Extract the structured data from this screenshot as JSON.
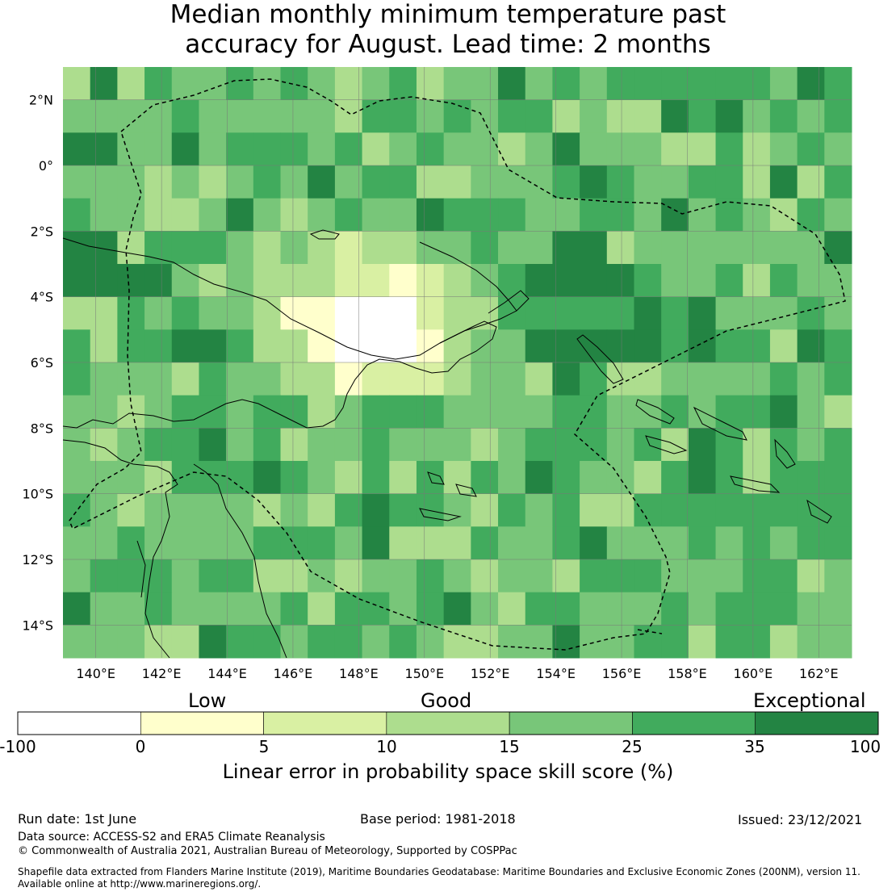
{
  "title": {
    "line1": "Median monthly minimum temperature past",
    "line2": "accuracy for August. Lead time: 2 months"
  },
  "map": {
    "lon_range": [
      139,
      163
    ],
    "lat_range": [
      -15,
      3
    ],
    "lon_ticks": [
      "140°E",
      "142°E",
      "144°E",
      "146°E",
      "148°E",
      "150°E",
      "152°E",
      "154°E",
      "156°E",
      "158°E",
      "160°E",
      "162°E"
    ],
    "lat_ticks": [
      "2°N",
      "0°",
      "2°S",
      "4°S",
      "6°S",
      "8°S",
      "10°S",
      "12°S",
      "14°S"
    ],
    "eez_boundary": "dashed",
    "coastline": "solid-black"
  },
  "colorbar": {
    "categories": [
      "Low",
      "Good",
      "Exceptional"
    ],
    "ticks": [
      "-100",
      "0",
      "5",
      "10",
      "15",
      "25",
      "35",
      "100"
    ],
    "bins": [
      {
        "range": [
          -100,
          0
        ],
        "color": "#ffffff"
      },
      {
        "range": [
          0,
          5
        ],
        "color": "#ffffcc"
      },
      {
        "range": [
          5,
          10
        ],
        "color": "#d9f0a3"
      },
      {
        "range": [
          10,
          15
        ],
        "color": "#addd8e"
      },
      {
        "range": [
          15,
          25
        ],
        "color": "#78c679"
      },
      {
        "range": [
          25,
          35
        ],
        "color": "#41ab5d"
      },
      {
        "range": [
          35,
          100
        ],
        "color": "#238443"
      }
    ],
    "label": "Linear error in probability space skill score (%)"
  },
  "footer": {
    "run_date": "Run date: 1st June",
    "base_period": "Base period: 1981-2018",
    "issued": "Issued: 23/12/2021",
    "data_source": "Data source: ACCESS-S2 and ERA5 Climate Reanalysis",
    "copyright": "© Commonwealth of Australia 2021, Australian Bureau of Meteorology, Supported by COSPPac",
    "shapefile_line1": "Shapefile data extracted from Flanders Marine Institute (2019), Maritime Boundaries Geodatabase: Maritime Boundaries and Exclusive Economic Zones (200NM), version 11.",
    "shapefile_line2": "Available online at http://www.marineregions.org/."
  }
}
